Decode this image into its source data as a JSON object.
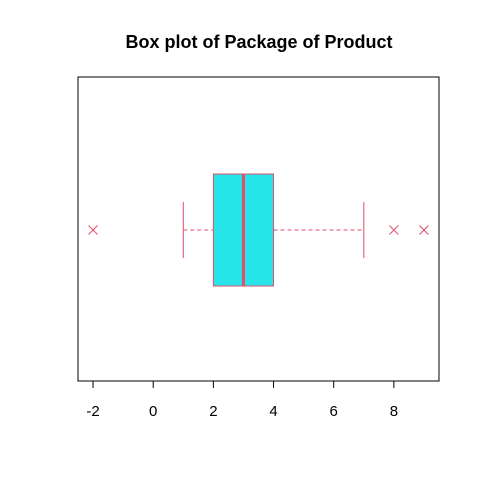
{
  "chart_data": {
    "type": "box",
    "orientation": "horizontal",
    "title": "Box plot of Package of Product",
    "xlabel": "",
    "ylabel": "",
    "xlim": [
      -2.5,
      9.5
    ],
    "ticks": [
      -2,
      0,
      2,
      4,
      6,
      8
    ],
    "tick_labels": [
      "-2",
      "0",
      "2",
      "4",
      "6",
      "8"
    ],
    "stats": {
      "min": 1,
      "q1": 2,
      "median": 3,
      "q3": 4,
      "max": 7
    },
    "outliers": [
      -2,
      8,
      9
    ],
    "colors": {
      "box_fill": "#26e4e8",
      "line": "#e34d6b",
      "median": "#e34d6b",
      "outlier": "#e34d6b",
      "axis": "#000000"
    }
  }
}
